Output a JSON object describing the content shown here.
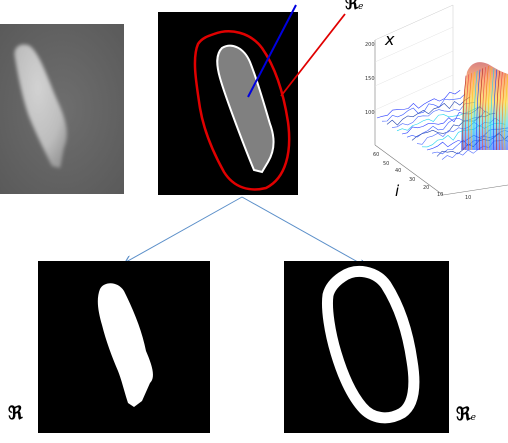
{
  "symbols": {
    "region": "ℜ",
    "edge_region": "ℜ",
    "edge_subscript": "e"
  },
  "plot": {
    "axis_x_label": "x",
    "axis_i_label": "i",
    "y_ticks": [
      "200",
      "150",
      "100"
    ],
    "i_ticks": [
      "60",
      "50",
      "40",
      "30",
      "20",
      "10"
    ],
    "x_ticks": [
      "10"
    ]
  },
  "colors": {
    "ring": "#e00000",
    "line_blue": "#0000e0",
    "line_red": "#e00000",
    "arrow": "#5b8fc9",
    "grain_fill": "#808080"
  }
}
